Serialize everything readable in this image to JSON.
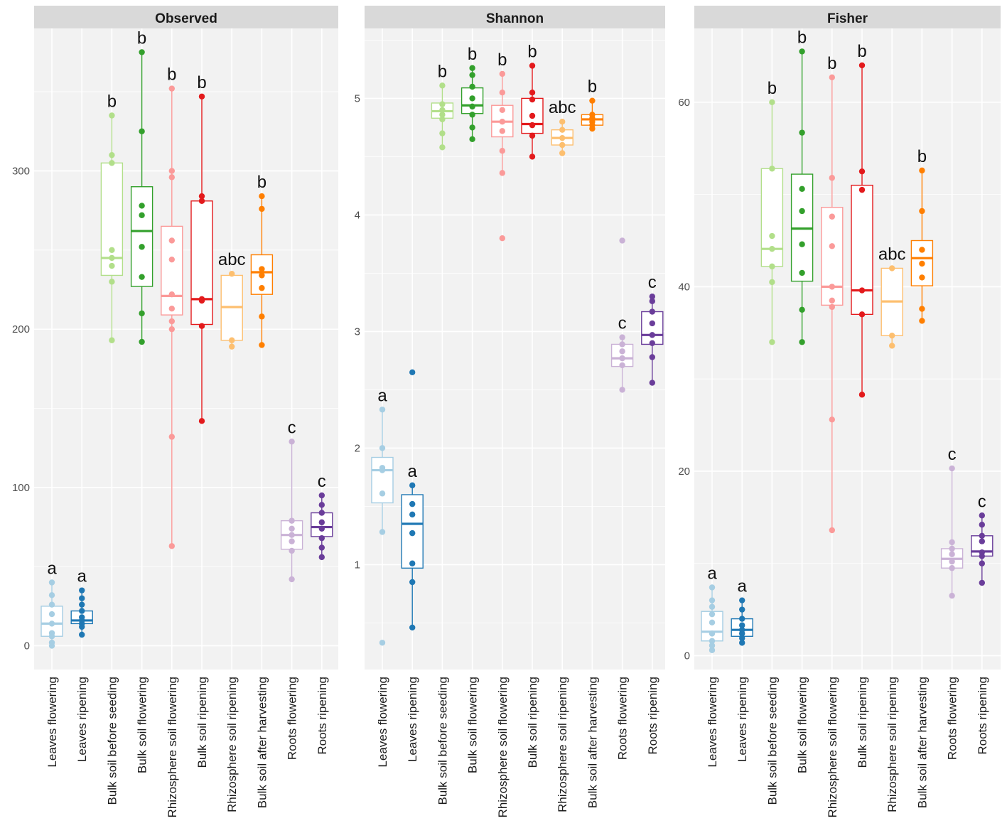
{
  "chart_data": {
    "type": "box",
    "categories": [
      "Leaves flowering",
      "Leaves ripening",
      "Bulk soil before seeding",
      "Bulk soil flowering",
      "Rhizosphere soil flowering",
      "Bulk soil ripening",
      "Rhizosphere soil ripening",
      "Bulk soil after harvesting",
      "Roots flowering",
      "Roots ripening"
    ],
    "colors": [
      "#a6cee3",
      "#1f78b4",
      "#b2df8a",
      "#33a02c",
      "#fb9a99",
      "#e31a1c",
      "#fdbf6f",
      "#ff7f00",
      "#cab2d6",
      "#6a3d9a"
    ],
    "panels": [
      {
        "title": "Observed",
        "ylim": [
          -15,
          390
        ],
        "yticks": [
          0,
          100,
          200,
          300
        ],
        "yticklabels": [
          "0",
          "100",
          "200",
          "300"
        ],
        "letters": [
          "a",
          "a",
          "b",
          "b",
          "b",
          "b",
          "abc",
          "b",
          "c",
          "c"
        ],
        "boxes": [
          {
            "q1": 6,
            "median": 14,
            "q3": 25,
            "whisker_low": 0,
            "whisker_high": 40,
            "points": [
              0,
              2,
              6,
              8,
              14,
              20,
              26,
              32,
              40
            ]
          },
          {
            "q1": 14,
            "median": 16,
            "q3": 22,
            "whisker_low": 7,
            "whisker_high": 35,
            "points": [
              7,
              12,
              14,
              16,
              18,
              22,
              26,
              30,
              35
            ]
          },
          {
            "q1": 234,
            "median": 245,
            "q3": 305,
            "whisker_low": 193,
            "whisker_high": 335,
            "points": [
              193,
              230,
              240,
              245,
              250,
              305,
              310,
              335
            ]
          },
          {
            "q1": 227,
            "median": 262,
            "q3": 290,
            "whisker_low": 192,
            "whisker_high": 375,
            "points": [
              192,
              210,
              233,
              252,
              272,
              278,
              325,
              375
            ]
          },
          {
            "q1": 209,
            "median": 221,
            "q3": 265,
            "whisker_low": 63,
            "whisker_high": 352,
            "points": [
              63,
              132,
              200,
              205,
              213,
              222,
              244,
              256,
              296,
              300,
              352
            ]
          },
          {
            "q1": 203,
            "median": 219,
            "q3": 281,
            "whisker_low": 142,
            "whisker_high": 347,
            "points": [
              142,
              202,
              218,
              219,
              281,
              284,
              347
            ]
          },
          {
            "q1": 193,
            "median": 214,
            "q3": 234,
            "whisker_low": 189,
            "whisker_high": 235,
            "points": [
              189,
              193,
              235
            ]
          },
          {
            "q1": 222,
            "median": 236,
            "q3": 247,
            "whisker_low": 190,
            "whisker_high": 284,
            "points": [
              190,
              208,
              226,
              234,
              238,
              276,
              284
            ]
          },
          {
            "q1": 61,
            "median": 70,
            "q3": 79,
            "whisker_low": 42,
            "whisker_high": 129,
            "points": [
              42,
              60,
              66,
              70,
              74,
              79,
              129
            ]
          },
          {
            "q1": 69,
            "median": 75,
            "q3": 84,
            "whisker_low": 56,
            "whisker_high": 95,
            "points": [
              56,
              62,
              68,
              74,
              78,
              84,
              89,
              95
            ]
          }
        ]
      },
      {
        "title": "Shannon",
        "ylim": [
          0.1,
          5.6
        ],
        "yticks": [
          1,
          2,
          3,
          4,
          5
        ],
        "yticklabels": [
          "1",
          "2",
          "3",
          "4",
          "5"
        ],
        "letters": [
          "a",
          "a",
          "b",
          "b",
          "b",
          "b",
          "abc",
          "b",
          "c",
          "c"
        ],
        "boxes": [
          {
            "q1": 1.53,
            "median": 1.81,
            "q3": 1.92,
            "whisker_low": 1.28,
            "whisker_high": 2.33,
            "points": [
              0.33,
              1.28,
              1.61,
              1.81,
              1.83,
              2.0,
              2.33
            ]
          },
          {
            "q1": 0.97,
            "median": 1.35,
            "q3": 1.6,
            "whisker_low": 0.46,
            "whisker_high": 1.68,
            "points": [
              0.46,
              0.85,
              1.01,
              1.27,
              1.43,
              1.52,
              1.68,
              2.65
            ]
          },
          {
            "q1": 4.83,
            "median": 4.89,
            "q3": 4.96,
            "whisker_low": 4.58,
            "whisker_high": 5.11,
            "points": [
              4.58,
              4.7,
              4.82,
              4.86,
              4.9,
              4.95,
              5.11
            ]
          },
          {
            "q1": 4.87,
            "median": 4.94,
            "q3": 5.09,
            "whisker_low": 4.65,
            "whisker_high": 5.26,
            "points": [
              4.65,
              4.75,
              4.86,
              4.93,
              5.0,
              5.1,
              5.2,
              5.26
            ]
          },
          {
            "q1": 4.67,
            "median": 4.8,
            "q3": 4.94,
            "whisker_low": 4.36,
            "whisker_high": 5.21,
            "points": [
              3.8,
              4.36,
              4.55,
              4.72,
              4.8,
              4.9,
              5.05,
              5.21
            ]
          },
          {
            "q1": 4.7,
            "median": 4.78,
            "q3": 5.0,
            "whisker_low": 4.5,
            "whisker_high": 5.28,
            "points": [
              4.5,
              4.68,
              4.77,
              4.85,
              4.99,
              5.05,
              5.28
            ]
          },
          {
            "q1": 4.6,
            "median": 4.66,
            "q3": 4.73,
            "whisker_low": 4.53,
            "whisker_high": 4.8,
            "points": [
              4.53,
              4.6,
              4.66,
              4.73,
              4.8
            ]
          },
          {
            "q1": 4.77,
            "median": 4.82,
            "q3": 4.86,
            "whisker_low": 4.74,
            "whisker_high": 4.98,
            "points": [
              4.74,
              4.77,
              4.8,
              4.83,
              4.86,
              4.98
            ]
          },
          {
            "q1": 2.7,
            "median": 2.77,
            "q3": 2.89,
            "whisker_low": 2.5,
            "whisker_high": 2.95,
            "points": [
              2.5,
              2.71,
              2.77,
              2.83,
              2.89,
              2.95,
              3.78
            ]
          },
          {
            "q1": 2.89,
            "median": 2.97,
            "q3": 3.17,
            "whisker_low": 2.56,
            "whisker_high": 3.3,
            "points": [
              2.56,
              2.78,
              2.9,
              2.97,
              3.07,
              3.17,
              3.26,
              3.3
            ]
          }
        ]
      },
      {
        "title": "Fisher",
        "ylim": [
          -1.5,
          68
        ],
        "yticks": [
          0,
          20,
          40,
          60
        ],
        "yticklabels": [
          "0",
          "20",
          "40",
          "60"
        ],
        "letters": [
          "a",
          "a",
          "b",
          "b",
          "b",
          "b",
          "abc",
          "b",
          "c",
          "c"
        ],
        "boxes": [
          {
            "q1": 1.6,
            "median": 2.6,
            "q3": 4.8,
            "whisker_low": 0.6,
            "whisker_high": 7.4,
            "points": [
              0.6,
              1.1,
              1.6,
              2.4,
              3.6,
              4.5,
              5.3,
              6.0,
              7.4
            ]
          },
          {
            "q1": 2.1,
            "median": 2.8,
            "q3": 4.0,
            "whisker_low": 1.4,
            "whisker_high": 6.0,
            "points": [
              1.4,
              1.9,
              2.4,
              2.8,
              3.3,
              4.0,
              5.0,
              6.0
            ]
          },
          {
            "q1": 42.2,
            "median": 44.1,
            "q3": 52.8,
            "whisker_low": 34.0,
            "whisker_high": 60.0,
            "points": [
              34.0,
              40.5,
              42.2,
              44.1,
              45.5,
              52.8,
              60.0
            ]
          },
          {
            "q1": 40.6,
            "median": 46.3,
            "q3": 52.2,
            "whisker_low": 34.0,
            "whisker_high": 65.5,
            "points": [
              34.0,
              37.5,
              41.5,
              44.6,
              48.2,
              50.6,
              56.7,
              65.5
            ]
          },
          {
            "q1": 38.0,
            "median": 40.0,
            "q3": 48.6,
            "whisker_low": 13.6,
            "whisker_high": 62.7,
            "points": [
              13.6,
              25.6,
              37.8,
              38.5,
              40.0,
              44.4,
              47.6,
              51.8,
              62.7
            ]
          },
          {
            "q1": 37.0,
            "median": 39.6,
            "q3": 51.0,
            "whisker_low": 28.3,
            "whisker_high": 64.0,
            "points": [
              28.3,
              37.0,
              39.6,
              50.5,
              52.5,
              64.0
            ]
          },
          {
            "q1": 34.7,
            "median": 38.4,
            "q3": 42.0,
            "whisker_low": 33.6,
            "whisker_high": 42.0,
            "points": [
              33.6,
              34.7,
              42.0
            ]
          },
          {
            "q1": 40.1,
            "median": 43.1,
            "q3": 45.0,
            "whisker_low": 36.3,
            "whisker_high": 52.6,
            "points": [
              36.3,
              37.6,
              41.0,
              42.5,
              44.0,
              48.2,
              52.6
            ]
          },
          {
            "q1": 9.5,
            "median": 10.5,
            "q3": 11.6,
            "whisker_low": 6.5,
            "whisker_high": 20.3,
            "points": [
              6.5,
              9.5,
              10.2,
              11.0,
              11.6,
              12.3,
              20.3
            ]
          },
          {
            "q1": 10.8,
            "median": 11.3,
            "q3": 13.0,
            "whisker_low": 7.9,
            "whisker_high": 15.2,
            "points": [
              7.9,
              10.0,
              10.8,
              11.2,
              12.4,
              13.0,
              14.2,
              15.2
            ]
          }
        ]
      }
    ]
  }
}
